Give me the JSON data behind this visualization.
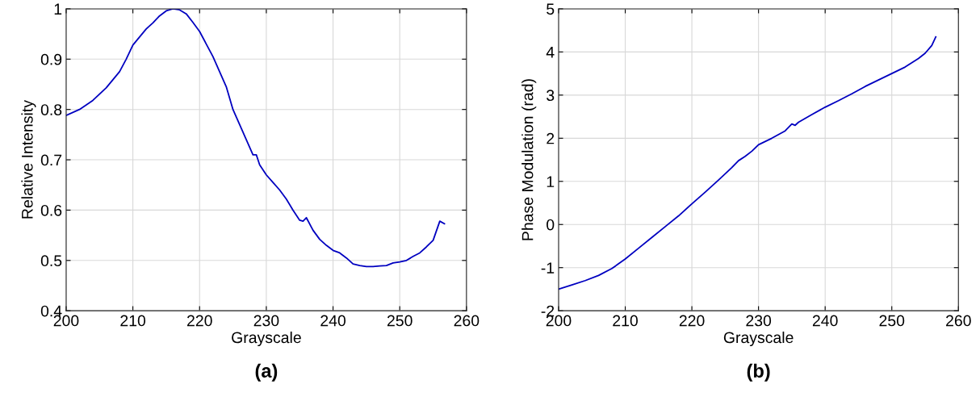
{
  "chart_data": [
    {
      "type": "line",
      "xlabel": "Grayscale",
      "ylabel": "Relative Intensity",
      "annotations": [
        "(a)"
      ],
      "grid": true,
      "xlim": [
        200,
        260
      ],
      "xticks": [
        200,
        210,
        220,
        230,
        240,
        250,
        260
      ],
      "ylim": [
        0.4,
        1
      ],
      "yticks": [
        0.4,
        0.5,
        0.6,
        0.7,
        0.8,
        0.9,
        1
      ],
      "series": [
        {
          "color": "#0000c0",
          "x": [
            200,
            202,
            204,
            206,
            208,
            209,
            210,
            212,
            213,
            214,
            215,
            216,
            217,
            218,
            219,
            220,
            221,
            222,
            224,
            225,
            226,
            227,
            228,
            228.5,
            229,
            230,
            231,
            232,
            233,
            234,
            235,
            235.5,
            236,
            237,
            238,
            239,
            240,
            241,
            242,
            243,
            244,
            245,
            246,
            247,
            248,
            249,
            250,
            251,
            252,
            253,
            254,
            255,
            256,
            256.7
          ],
          "values": [
            0.788,
            0.8,
            0.818,
            0.843,
            0.875,
            0.9,
            0.928,
            0.96,
            0.972,
            0.986,
            0.996,
            1.0,
            0.998,
            0.99,
            0.973,
            0.955,
            0.93,
            0.905,
            0.845,
            0.8,
            0.77,
            0.74,
            0.71,
            0.71,
            0.69,
            0.67,
            0.655,
            0.64,
            0.622,
            0.6,
            0.58,
            0.578,
            0.585,
            0.56,
            0.542,
            0.53,
            0.52,
            0.515,
            0.505,
            0.493,
            0.49,
            0.488,
            0.488,
            0.489,
            0.49,
            0.495,
            0.497,
            0.5,
            0.508,
            0.515,
            0.527,
            0.54,
            0.578,
            0.573
          ]
        }
      ]
    },
    {
      "type": "line",
      "xlabel": "Grayscale",
      "ylabel": "Phase Modulation (rad)",
      "annotations": [
        "(b)"
      ],
      "grid": true,
      "xlim": [
        200,
        260
      ],
      "xticks": [
        200,
        210,
        220,
        230,
        240,
        250,
        260
      ],
      "ylim": [
        -2,
        5
      ],
      "yticks": [
        -2,
        -1,
        0,
        1,
        2,
        3,
        4,
        5
      ],
      "series": [
        {
          "color": "#0000c0",
          "x": [
            200,
            202,
            204,
            206,
            208,
            210,
            212,
            214,
            216,
            218,
            220,
            222,
            224,
            226,
            227,
            228,
            229,
            230,
            232,
            234,
            235,
            235.5,
            236,
            238,
            240,
            242,
            244,
            246,
            248,
            250,
            252,
            254,
            255,
            256,
            256.6
          ],
          "values": [
            -1.5,
            -1.4,
            -1.3,
            -1.18,
            -1.02,
            -0.8,
            -0.55,
            -0.3,
            -0.05,
            0.2,
            0.48,
            0.75,
            1.03,
            1.32,
            1.48,
            1.58,
            1.7,
            1.85,
            2.0,
            2.17,
            2.33,
            2.3,
            2.37,
            2.55,
            2.72,
            2.87,
            3.03,
            3.2,
            3.35,
            3.5,
            3.65,
            3.85,
            3.97,
            4.15,
            4.35
          ]
        }
      ]
    }
  ]
}
